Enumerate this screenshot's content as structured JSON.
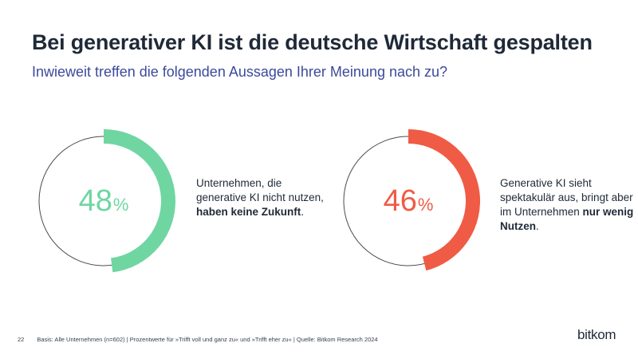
{
  "title": "Bei generativer KI ist die deutsche Wirtschaft gespalten",
  "subtitle": "Inwieweit treffen die folgenden Aussagen Ihrer Meinung nach zu?",
  "chart_data": [
    {
      "type": "pie",
      "value": 48,
      "value_label": "48",
      "unit": "%",
      "color": "#6fd6a2",
      "caption_plain": "Unternehmen, die generative KI nicht nutzen, ",
      "caption_bold": "haben keine Zukunft",
      "caption_end": "."
    },
    {
      "type": "pie",
      "value": 46,
      "value_label": "46",
      "unit": "%",
      "color": "#ef5b45",
      "caption_plain": "Generative KI sieht spektakulär aus, bringt aber im Unternehmen ",
      "caption_bold": "nur wenig Nutzen",
      "caption_end": "."
    }
  ],
  "footer": {
    "page_number": "22",
    "text": "Basis: Alle Unternehmen (n=602) | Prozentwerte für »Trifft voll und ganz zu« und »Trifft eher zu« | Quelle: Bitkom Research 2024"
  },
  "logo": "bitkom"
}
